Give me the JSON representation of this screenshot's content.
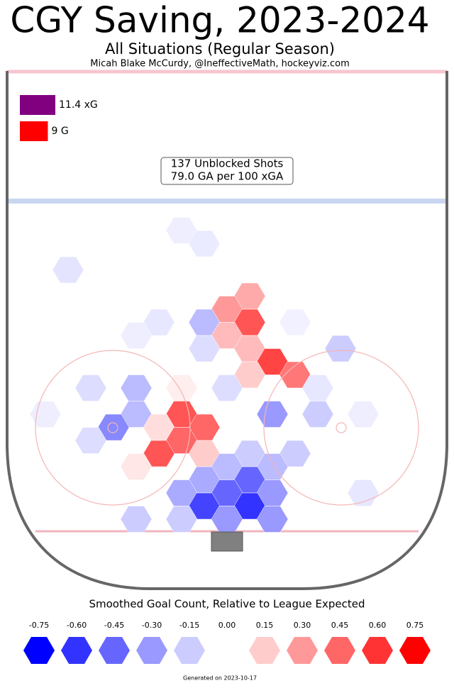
{
  "chart_data": {
    "type": "hexbin",
    "title": "CGY Saving, 2023-2024",
    "subtitle": "All Situations (Regular Season)",
    "credit": "Micah Blake McCurdy, @IneffectiveMath, hockeyviz.com",
    "totals": {
      "values": [
        11.4,
        9
      ],
      "value_labels": [
        "11.4 xG",
        "9 G"
      ],
      "colors": [
        "#800080",
        "#ff0000"
      ]
    },
    "summary": [
      "137 Unblocked Shots",
      "79.0 GA per 100 xGA"
    ],
    "hexes": [
      {
        "x": 9,
        "y": 5,
        "value": 0.25
      },
      {
        "x": 8,
        "y": 6,
        "value": 0.3
      },
      {
        "x": 9,
        "y": 7,
        "value": 0.5
      },
      {
        "x": 7,
        "y": 7,
        "value": -0.2
      },
      {
        "x": 8,
        "y": 8,
        "value": 0.2
      },
      {
        "x": 9,
        "y": 9,
        "value": 0.2
      },
      {
        "x": 10,
        "y": 10,
        "value": 0.55
      },
      {
        "x": 7,
        "y": 9,
        "value": -0.1
      },
      {
        "x": 9,
        "y": 11,
        "value": 0.15
      },
      {
        "x": 11,
        "y": 11,
        "value": 0.4
      },
      {
        "x": 13,
        "y": 9,
        "value": -0.15
      },
      {
        "x": 5,
        "y": 7,
        "value": -0.07
      },
      {
        "x": 4,
        "y": 8,
        "value": -0.05
      },
      {
        "x": 4,
        "y": 12,
        "value": -0.2
      },
      {
        "x": 2,
        "y": 12,
        "value": -0.1
      },
      {
        "x": 6,
        "y": 12,
        "value": 0.05
      },
      {
        "x": 8,
        "y": 12,
        "value": -0.1
      },
      {
        "x": 6,
        "y": 14,
        "value": 0.5
      },
      {
        "x": 4,
        "y": 14,
        "value": -0.2
      },
      {
        "x": 10,
        "y": 14,
        "value": -0.3
      },
      {
        "x": 12,
        "y": 14,
        "value": -0.15
      },
      {
        "x": 3,
        "y": 15,
        "value": -0.35
      },
      {
        "x": 7,
        "y": 15,
        "value": 0.45
      },
      {
        "x": 5,
        "y": 15,
        "value": 0.1
      },
      {
        "x": 2,
        "y": 16,
        "value": -0.1
      },
      {
        "x": 6,
        "y": 16,
        "value": 0.45
      },
      {
        "x": 11,
        "y": 17,
        "value": -0.15
      },
      {
        "x": 9,
        "y": 17,
        "value": -0.15
      },
      {
        "x": 5,
        "y": 17,
        "value": 0.5
      },
      {
        "x": 7,
        "y": 17,
        "value": 0.15
      },
      {
        "x": 4,
        "y": 18,
        "value": 0.07
      },
      {
        "x": 8,
        "y": 18,
        "value": -0.2
      },
      {
        "x": 10,
        "y": 18,
        "value": -0.2
      },
      {
        "x": 9,
        "y": 19,
        "value": -0.45
      },
      {
        "x": 7,
        "y": 19,
        "value": -0.25
      },
      {
        "x": 6,
        "y": 20,
        "value": -0.25
      },
      {
        "x": 8,
        "y": 20,
        "value": -0.45
      },
      {
        "x": 10,
        "y": 20,
        "value": -0.3
      },
      {
        "x": 14,
        "y": 20,
        "value": -0.07
      },
      {
        "x": 7,
        "y": 21,
        "value": -0.55
      },
      {
        "x": 9,
        "y": 21,
        "value": -0.6
      },
      {
        "x": 4,
        "y": 22,
        "value": -0.15
      },
      {
        "x": 6,
        "y": 22,
        "value": -0.15
      },
      {
        "x": 8,
        "y": 22,
        "value": -0.3
      },
      {
        "x": 10,
        "y": 22,
        "value": -0.3
      },
      {
        "x": 1,
        "y": 3,
        "value": -0.08
      },
      {
        "x": 6,
        "y": 0,
        "value": -0.05
      },
      {
        "x": 7,
        "y": 1,
        "value": -0.06
      },
      {
        "x": 14,
        "y": 14,
        "value": -0.05
      },
      {
        "x": 0,
        "y": 14,
        "value": -0.05
      },
      {
        "x": 12,
        "y": 12,
        "value": -0.07
      },
      {
        "x": 11,
        "y": 7,
        "value": -0.04
      }
    ],
    "colorbar": {
      "title": "Smoothed Goal Count, Relative to League Expected",
      "negative_color": "#0000ff",
      "positive_color": "#ff0000",
      "ticks": [
        -0.75,
        {
          "value": -0.6,
          "label": "-0.60"
        },
        -0.45,
        {
          "value": -0.3,
          "label": "-0.30"
        },
        -0.15,
        {
          "value": 0,
          "label": "0.00"
        },
        0.15,
        {
          "value": 0.3,
          "label": "0.30"
        },
        0.45,
        {
          "value": 0.6,
          "label": "0.60"
        },
        0.75
      ]
    },
    "footer": "Generated on 2023-10-17"
  }
}
